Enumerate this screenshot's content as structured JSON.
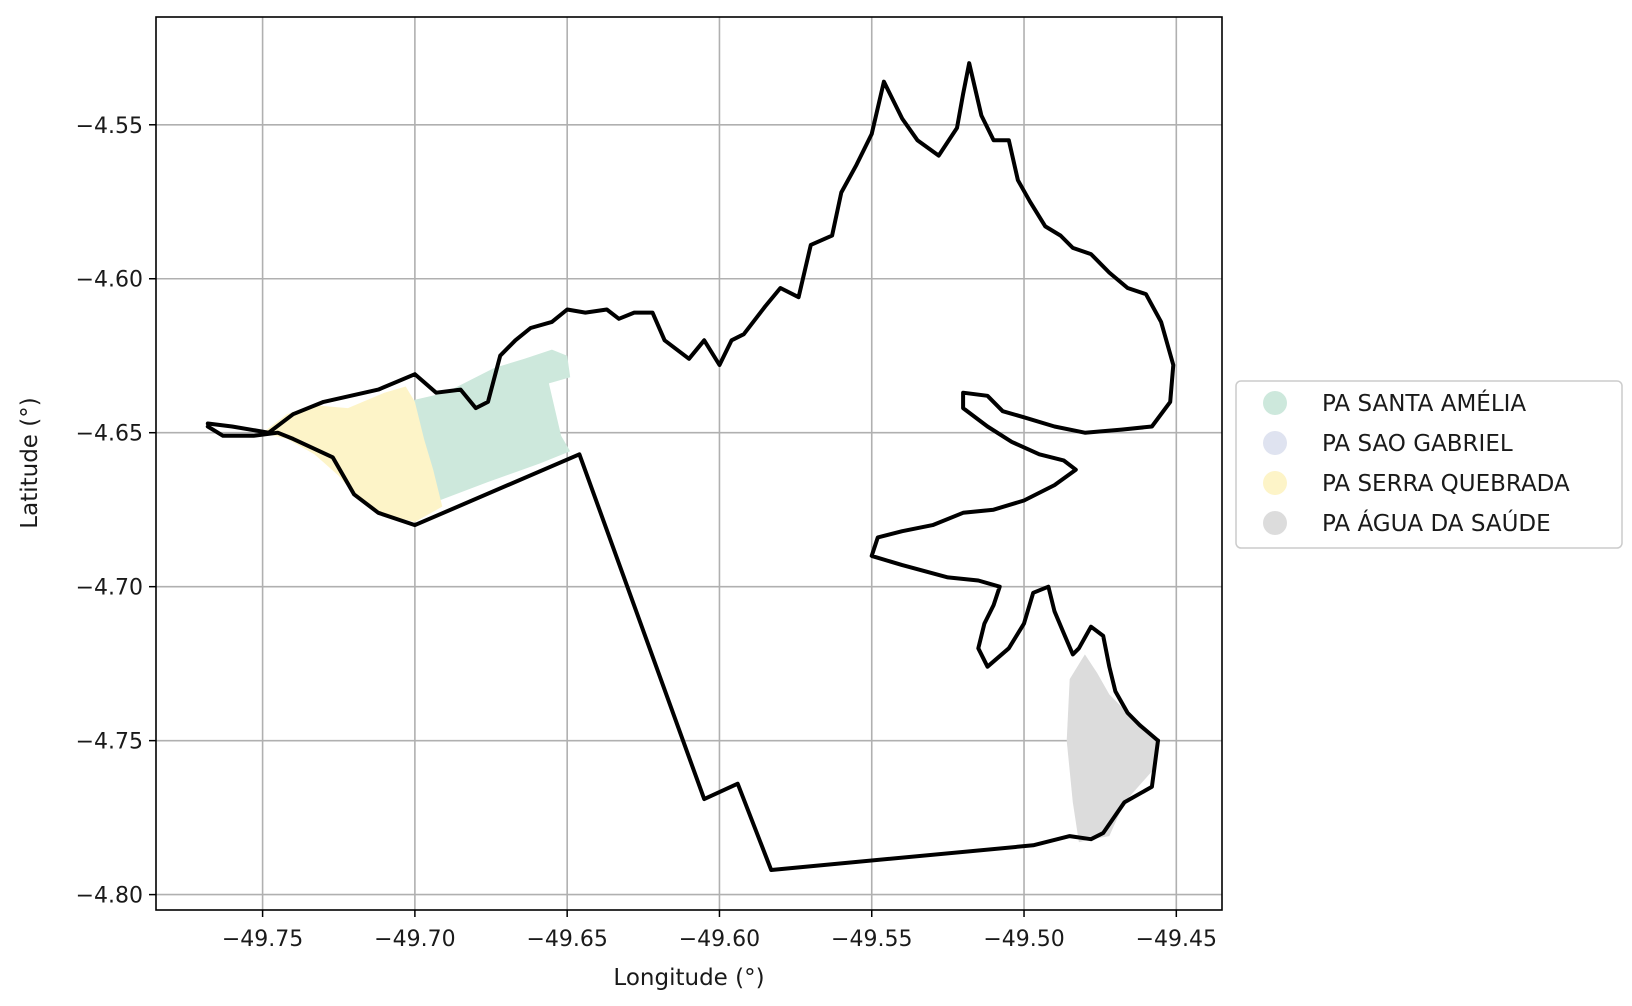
{
  "chart_data": {
    "type": "map",
    "title": "",
    "xlabel": "Longitude (°)",
    "ylabel": "Latitude (°)",
    "xlim": [
      -49.785,
      -49.435
    ],
    "ylim": [
      -4.805,
      -4.515
    ],
    "grid": true,
    "legend_placement": "center-right outside",
    "x_ticks": [
      {
        "value": -49.75,
        "label": "−49.75"
      },
      {
        "value": -49.7,
        "label": "−49.70"
      },
      {
        "value": -49.65,
        "label": "−49.65"
      },
      {
        "value": -49.6,
        "label": "−49.60"
      },
      {
        "value": -49.55,
        "label": "−49.55"
      },
      {
        "value": -49.5,
        "label": "−49.50"
      },
      {
        "value": -49.45,
        "label": "−49.45"
      }
    ],
    "y_ticks": [
      {
        "value": -4.55,
        "label": "−4.55"
      },
      {
        "value": -4.6,
        "label": "−4.60"
      },
      {
        "value": -4.65,
        "label": "−4.65"
      },
      {
        "value": -4.7,
        "label": "−4.70"
      },
      {
        "value": -4.75,
        "label": "−4.75"
      },
      {
        "value": -4.8,
        "label": "−4.80"
      }
    ],
    "series": [
      {
        "name": "PA SANTA AMÉLIA",
        "color": "#cde8dc",
        "polygon": [
          [
            -49.703,
            -4.64
          ],
          [
            -49.69,
            -4.637
          ],
          [
            -49.682,
            -4.633
          ],
          [
            -49.674,
            -4.629
          ],
          [
            -49.664,
            -4.626
          ],
          [
            -49.655,
            -4.623
          ],
          [
            -49.65,
            -4.625
          ],
          [
            -49.649,
            -4.632
          ],
          [
            -49.656,
            -4.634
          ],
          [
            -49.652,
            -4.651
          ],
          [
            -49.649,
            -4.656
          ],
          [
            -49.659,
            -4.66
          ],
          [
            -49.676,
            -4.666
          ],
          [
            -49.692,
            -4.672
          ],
          [
            -49.696,
            -4.66
          ],
          [
            -49.699,
            -4.65
          ]
        ]
      },
      {
        "name": "PA SAO GABRIEL",
        "color": "#dfe3f0",
        "polygon": []
      },
      {
        "name": "PA SERRA QUEBRADA",
        "color": "#fdf4c8",
        "polygon": [
          [
            -49.75,
            -4.65
          ],
          [
            -49.742,
            -4.644
          ],
          [
            -49.734,
            -4.641
          ],
          [
            -49.722,
            -4.642
          ],
          [
            -49.71,
            -4.637
          ],
          [
            -49.703,
            -4.635
          ],
          [
            -49.7,
            -4.64
          ],
          [
            -49.697,
            -4.652
          ],
          [
            -49.694,
            -4.662
          ],
          [
            -49.691,
            -4.674
          ],
          [
            -49.7,
            -4.679
          ],
          [
            -49.712,
            -4.676
          ],
          [
            -49.72,
            -4.67
          ],
          [
            -49.725,
            -4.664
          ],
          [
            -49.733,
            -4.657
          ],
          [
            -49.742,
            -4.652
          ]
        ]
      },
      {
        "name": "PA ÁGUA DA SAÚDE",
        "color": "#dcdcdc",
        "polygon": [
          [
            -49.485,
            -4.73
          ],
          [
            -49.48,
            -4.722
          ],
          [
            -49.476,
            -4.728
          ],
          [
            -49.472,
            -4.735
          ],
          [
            -49.466,
            -4.741
          ],
          [
            -49.46,
            -4.746
          ],
          [
            -49.456,
            -4.75
          ],
          [
            -49.458,
            -4.76
          ],
          [
            -49.467,
            -4.77
          ],
          [
            -49.472,
            -4.781
          ],
          [
            -49.478,
            -4.782
          ],
          [
            -49.482,
            -4.783
          ],
          [
            -49.484,
            -4.77
          ],
          [
            -49.486,
            -4.75
          ]
        ]
      }
    ],
    "boundary": {
      "south_edge": [
        [
          -49.456,
          -4.75
        ],
        [
          -49.458,
          -4.765
        ],
        [
          -49.467,
          -4.77
        ],
        [
          -49.474,
          -4.78
        ],
        [
          -49.478,
          -4.782
        ],
        [
          -49.485,
          -4.781
        ],
        [
          -49.497,
          -4.784
        ],
        [
          -49.583,
          -4.792
        ],
        [
          -49.594,
          -4.764
        ],
        [
          -49.605,
          -4.769
        ],
        [
          -49.646,
          -4.657
        ],
        [
          -49.7,
          -4.68
        ],
        [
          -49.712,
          -4.676
        ],
        [
          -49.72,
          -4.67
        ],
        [
          -49.727,
          -4.658
        ],
        [
          -49.74,
          -4.652
        ],
        [
          -49.745,
          -4.65
        ],
        [
          -49.753,
          -4.651
        ],
        [
          -49.763,
          -4.651
        ],
        [
          -49.768,
          -4.648
        ]
      ],
      "north_edge": [
        [
          -49.768,
          -4.647
        ],
        [
          -49.76,
          -4.648
        ],
        [
          -49.748,
          -4.65
        ],
        [
          -49.74,
          -4.644
        ],
        [
          -49.73,
          -4.64
        ],
        [
          -49.712,
          -4.636
        ],
        [
          -49.7,
          -4.631
        ],
        [
          -49.693,
          -4.637
        ],
        [
          -49.685,
          -4.636
        ],
        [
          -49.68,
          -4.642
        ],
        [
          -49.676,
          -4.64
        ],
        [
          -49.672,
          -4.625
        ],
        [
          -49.667,
          -4.62
        ],
        [
          -49.662,
          -4.616
        ],
        [
          -49.655,
          -4.614
        ],
        [
          -49.65,
          -4.61
        ],
        [
          -49.644,
          -4.611
        ],
        [
          -49.637,
          -4.61
        ],
        [
          -49.633,
          -4.613
        ],
        [
          -49.628,
          -4.611
        ],
        [
          -49.622,
          -4.611
        ],
        [
          -49.618,
          -4.62
        ],
        [
          -49.61,
          -4.626
        ],
        [
          -49.605,
          -4.62
        ],
        [
          -49.6,
          -4.628
        ],
        [
          -49.596,
          -4.62
        ],
        [
          -49.592,
          -4.618
        ],
        [
          -49.585,
          -4.609
        ],
        [
          -49.58,
          -4.603
        ],
        [
          -49.574,
          -4.606
        ],
        [
          -49.57,
          -4.589
        ],
        [
          -49.563,
          -4.586
        ],
        [
          -49.56,
          -4.572
        ],
        [
          -49.555,
          -4.563
        ],
        [
          -49.55,
          -4.553
        ],
        [
          -49.546,
          -4.536
        ],
        [
          -49.54,
          -4.548
        ],
        [
          -49.535,
          -4.555
        ],
        [
          -49.528,
          -4.56
        ],
        [
          -49.522,
          -4.551
        ],
        [
          -49.52,
          -4.54
        ],
        [
          -49.518,
          -4.53
        ],
        [
          -49.514,
          -4.547
        ],
        [
          -49.51,
          -4.555
        ],
        [
          -49.505,
          -4.555
        ],
        [
          -49.502,
          -4.568
        ],
        [
          -49.498,
          -4.575
        ],
        [
          -49.493,
          -4.583
        ],
        [
          -49.488,
          -4.586
        ],
        [
          -49.484,
          -4.59
        ],
        [
          -49.478,
          -4.592
        ],
        [
          -49.472,
          -4.598
        ],
        [
          -49.466,
          -4.603
        ],
        [
          -49.46,
          -4.605
        ],
        [
          -49.455,
          -4.614
        ],
        [
          -49.451,
          -4.628
        ],
        [
          -49.452,
          -4.64
        ],
        [
          -49.458,
          -4.648
        ],
        [
          -49.468,
          -4.649
        ],
        [
          -49.48,
          -4.65
        ],
        [
          -49.49,
          -4.648
        ],
        [
          -49.5,
          -4.645
        ],
        [
          -49.507,
          -4.643
        ],
        [
          -49.512,
          -4.638
        ],
        [
          -49.52,
          -4.637
        ],
        [
          -49.52,
          -4.642
        ],
        [
          -49.512,
          -4.648
        ],
        [
          -49.504,
          -4.653
        ],
        [
          -49.495,
          -4.657
        ],
        [
          -49.487,
          -4.659
        ],
        [
          -49.483,
          -4.662
        ],
        [
          -49.49,
          -4.667
        ],
        [
          -49.5,
          -4.672
        ],
        [
          -49.51,
          -4.675
        ],
        [
          -49.52,
          -4.676
        ],
        [
          -49.53,
          -4.68
        ],
        [
          -49.54,
          -4.682
        ],
        [
          -49.548,
          -4.684
        ],
        [
          -49.55,
          -4.69
        ],
        [
          -49.54,
          -4.693
        ],
        [
          -49.525,
          -4.697
        ],
        [
          -49.515,
          -4.698
        ],
        [
          -49.508,
          -4.7
        ],
        [
          -49.51,
          -4.706
        ],
        [
          -49.513,
          -4.712
        ],
        [
          -49.515,
          -4.72
        ],
        [
          -49.512,
          -4.726
        ],
        [
          -49.505,
          -4.72
        ],
        [
          -49.5,
          -4.712
        ],
        [
          -49.497,
          -4.702
        ],
        [
          -49.492,
          -4.7
        ],
        [
          -49.49,
          -4.708
        ],
        [
          -49.487,
          -4.715
        ],
        [
          -49.484,
          -4.722
        ],
        [
          -49.482,
          -4.72
        ],
        [
          -49.478,
          -4.713
        ],
        [
          -49.474,
          -4.716
        ],
        [
          -49.472,
          -4.726
        ],
        [
          -49.47,
          -4.734
        ],
        [
          -49.466,
          -4.741
        ],
        [
          -49.462,
          -4.745
        ],
        [
          -49.456,
          -4.75
        ]
      ]
    }
  },
  "legend": {
    "items": [
      {
        "label": "PA SANTA AMÉLIA",
        "color": "#cde8dc"
      },
      {
        "label": "PA SAO GABRIEL",
        "color": "#dfe3f0"
      },
      {
        "label": "PA SERRA QUEBRADA",
        "color": "#fdf4c8"
      },
      {
        "label": "PA ÁGUA DA SAÚDE",
        "color": "#dcdcdc"
      }
    ]
  }
}
